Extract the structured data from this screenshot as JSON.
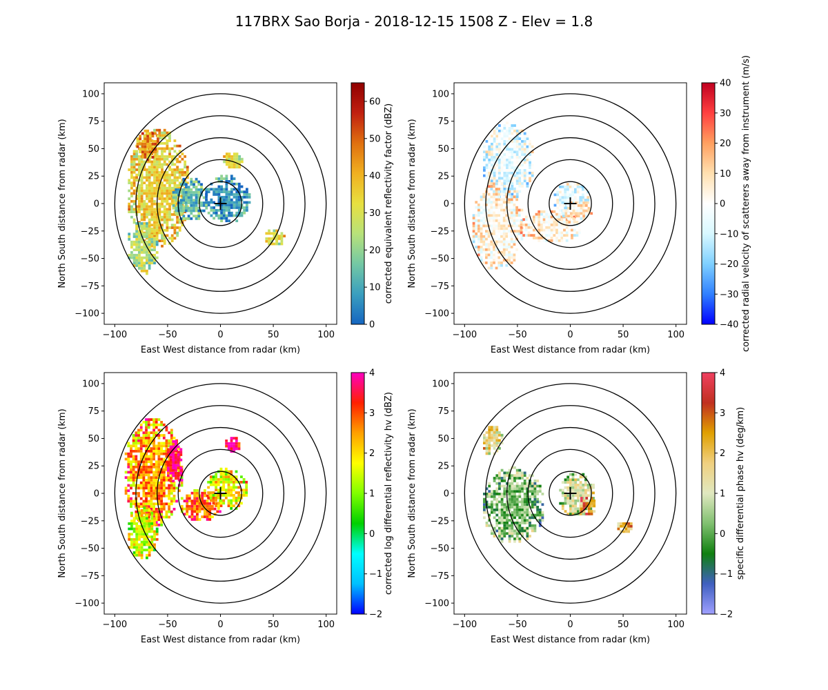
{
  "title": "117BRX Sao Borja - 2018-12-15 1508 Z -  Elev = 1.8",
  "chart_data": [
    {
      "type": "heatmap",
      "title": "",
      "xlabel": "East West distance from radar (km)",
      "ylabel": "North South distance from radar (km)",
      "xlim": [
        -110,
        110
      ],
      "ylim": [
        -110,
        110
      ],
      "xticks": [
        -100,
        -50,
        0,
        50,
        100
      ],
      "yticks": [
        -100,
        -75,
        -50,
        -25,
        0,
        25,
        50,
        75,
        100
      ],
      "range_rings_km": [
        20,
        40,
        60,
        80,
        100
      ],
      "colorbar": {
        "label": "corrected equivalent reflectivity factor (dBZ)",
        "range": [
          0,
          65
        ],
        "ticks": [
          0,
          10,
          20,
          30,
          40,
          50,
          60
        ],
        "stops": [
          "#1565c0",
          "#3a9fbf",
          "#74c8a4",
          "#b8e27a",
          "#e8e040",
          "#f0b020",
          "#e07010",
          "#c02010",
          "#900000"
        ]
      },
      "echo_regions": [
        {
          "cx": -60,
          "cy": 15,
          "rx": 30,
          "ry": 55,
          "value": 35
        },
        {
          "cx": -70,
          "cy": 55,
          "rx": 12,
          "ry": 14,
          "value": 45
        },
        {
          "cx": -75,
          "cy": -40,
          "rx": 15,
          "ry": 25,
          "value": 25
        },
        {
          "cx": -30,
          "cy": 5,
          "rx": 18,
          "ry": 20,
          "value": 12
        },
        {
          "cx": 5,
          "cy": 5,
          "rx": 22,
          "ry": 22,
          "value": 6
        },
        {
          "cx": 10,
          "cy": 40,
          "rx": 10,
          "ry": 8,
          "value": 30
        },
        {
          "cx": 50,
          "cy": -30,
          "rx": 10,
          "ry": 8,
          "value": 30
        }
      ]
    },
    {
      "type": "heatmap",
      "title": "",
      "xlabel": "East West distance from radar (km)",
      "ylabel": "North South distance from radar (km)",
      "xlim": [
        -110,
        110
      ],
      "ylim": [
        -110,
        110
      ],
      "xticks": [
        -100,
        -50,
        0,
        50,
        100
      ],
      "yticks": [
        -100,
        -75,
        -50,
        -25,
        0,
        25,
        50,
        75,
        100
      ],
      "range_rings_km": [
        20,
        40,
        60,
        80,
        100
      ],
      "colorbar": {
        "label": "corrected radial velocity of scatterers away from instrument (m/s)",
        "range": [
          -40,
          40
        ],
        "ticks": [
          -40,
          -30,
          -20,
          -10,
          0,
          10,
          20,
          30,
          40
        ],
        "stops": [
          "#0000ff",
          "#3080ff",
          "#7fd0ff",
          "#d8f8ff",
          "#ffffff",
          "#ffe0b0",
          "#ffa060",
          "#ff4040",
          "#c00020"
        ]
      },
      "echo_regions": [
        {
          "cx": -60,
          "cy": 40,
          "rx": 25,
          "ry": 35,
          "value": -6
        },
        {
          "cx": -70,
          "cy": -20,
          "rx": 25,
          "ry": 40,
          "value": 4
        },
        {
          "cx": -20,
          "cy": -20,
          "rx": 30,
          "ry": 15,
          "value": 5
        },
        {
          "cx": 0,
          "cy": 5,
          "rx": 18,
          "ry": 15,
          "value": -5
        },
        {
          "cx": 5,
          "cy": -5,
          "rx": 15,
          "ry": 10,
          "value": 4
        }
      ]
    },
    {
      "type": "heatmap",
      "title": "",
      "xlabel": "East West distance from radar (km)",
      "ylabel": "North South distance from radar (km)",
      "xlim": [
        -110,
        110
      ],
      "ylim": [
        -110,
        110
      ],
      "xticks": [
        -100,
        -50,
        0,
        50,
        100
      ],
      "yticks": [
        -100,
        -75,
        -50,
        -25,
        0,
        25,
        50,
        75,
        100
      ],
      "range_rings_km": [
        20,
        40,
        60,
        80,
        100
      ],
      "colorbar": {
        "label": "corrected log differential reflectivity hv (dBZ)",
        "range": [
          -2,
          4
        ],
        "ticks": [
          -2,
          -1,
          0,
          1,
          2,
          3,
          4
        ],
        "stops": [
          "#0000ff",
          "#00c0ff",
          "#00ffff",
          "#00d000",
          "#80ff00",
          "#ffff00",
          "#ffa000",
          "#ff2000",
          "#ff00c0"
        ]
      },
      "echo_regions": [
        {
          "cx": -65,
          "cy": 20,
          "rx": 28,
          "ry": 50,
          "value": 2.5
        },
        {
          "cx": -45,
          "cy": 30,
          "rx": 8,
          "ry": 20,
          "value": 3.9
        },
        {
          "cx": -75,
          "cy": -35,
          "rx": 15,
          "ry": 25,
          "value": 1.5
        },
        {
          "cx": -20,
          "cy": -10,
          "rx": 20,
          "ry": 15,
          "value": 2.8
        },
        {
          "cx": 5,
          "cy": 5,
          "rx": 20,
          "ry": 20,
          "value": 1.8
        },
        {
          "cx": 10,
          "cy": 45,
          "rx": 8,
          "ry": 8,
          "value": 3.8
        }
      ]
    },
    {
      "type": "heatmap",
      "title": "",
      "xlabel": "East West distance from radar (km)",
      "ylabel": "North South distance from radar (km)",
      "xlim": [
        -110,
        110
      ],
      "ylim": [
        -110,
        110
      ],
      "xticks": [
        -100,
        -50,
        0,
        50,
        100
      ],
      "yticks": [
        -100,
        -75,
        -50,
        -25,
        0,
        25,
        50,
        75,
        100
      ],
      "range_rings_km": [
        20,
        40,
        60,
        80,
        100
      ],
      "colorbar": {
        "label": "specific differential phase hv (deg/km)",
        "range": [
          -2,
          4
        ],
        "ticks": [
          -2,
          -1,
          0,
          1,
          2,
          3,
          4
        ],
        "stops": [
          "#a0a0ff",
          "#4060c0",
          "#108010",
          "#80c070",
          "#e0e8c0",
          "#f0d080",
          "#e0a000",
          "#c03020",
          "#f04060"
        ]
      },
      "echo_regions": [
        {
          "cx": -55,
          "cy": -10,
          "rx": 30,
          "ry": 35,
          "value": 0.2
        },
        {
          "cx": -75,
          "cy": 50,
          "rx": 10,
          "ry": 15,
          "value": 1.5
        },
        {
          "cx": 5,
          "cy": 0,
          "rx": 18,
          "ry": 20,
          "value": 1.0
        },
        {
          "cx": 15,
          "cy": -10,
          "rx": 8,
          "ry": 10,
          "value": 2.8
        },
        {
          "cx": 50,
          "cy": -30,
          "rx": 8,
          "ry": 6,
          "value": 2.0
        }
      ]
    }
  ]
}
